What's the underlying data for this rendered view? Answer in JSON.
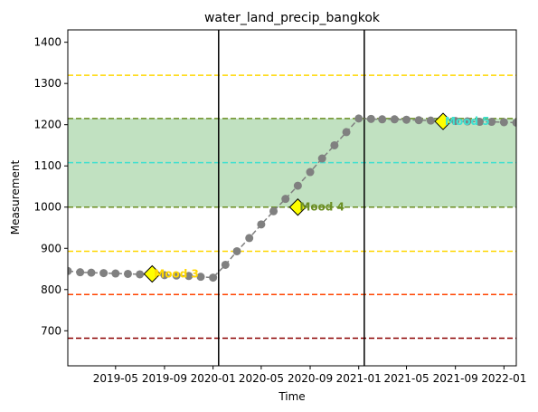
{
  "chart_data": {
    "type": "line",
    "title": "water_land_precip_bangkok",
    "xlabel": "Time",
    "ylabel": "Measurement",
    "xlim": [
      "2019-01-01",
      "2022-02-01"
    ],
    "ylim": [
      615,
      1430
    ],
    "x_ticks": [
      "2019-05",
      "2019-09",
      "2020-01",
      "2020-05",
      "2020-09",
      "2021-01",
      "2021-05",
      "2021-09",
      "2022-01"
    ],
    "y_ticks": [
      700,
      800,
      900,
      1000,
      1100,
      1200,
      1300,
      1400
    ],
    "grid": false,
    "series": [
      {
        "color": "#808080",
        "x": [
          "2019-01-01",
          "2019-02-01",
          "2019-03-01",
          "2019-04-01",
          "2019-05-01",
          "2019-06-01",
          "2019-07-01",
          "2019-08-01",
          "2019-09-01",
          "2019-10-01",
          "2019-11-01",
          "2019-12-01",
          "2020-01-01",
          "2020-02-01",
          "2020-03-01",
          "2020-04-01",
          "2020-05-01",
          "2020-06-01",
          "2020-07-01",
          "2020-08-01",
          "2020-09-01",
          "2020-10-01",
          "2020-11-01",
          "2020-12-01",
          "2021-01-01",
          "2021-02-01",
          "2021-03-01",
          "2021-04-01",
          "2021-05-01",
          "2021-06-01",
          "2021-07-01",
          "2021-08-01",
          "2021-09-01",
          "2021-10-01",
          "2021-11-01",
          "2021-12-01",
          "2022-01-01",
          "2022-02-01"
        ],
        "y": [
          845,
          842,
          841,
          840,
          839,
          838,
          837,
          836,
          835,
          834,
          833,
          831,
          829,
          860,
          893,
          925,
          958,
          990,
          1020,
          1052,
          1085,
          1118,
          1150,
          1182,
          1215,
          1214,
          1213,
          1213,
          1212,
          1211,
          1210,
          1209,
          1209,
          1208,
          1207,
          1207,
          1206,
          1205
        ]
      }
    ],
    "hlines": [
      {
        "y": 1320,
        "color": "#FFD700",
        "style": "dashed"
      },
      {
        "y": 1215,
        "color": "#6B8E23",
        "style": "dashed"
      },
      {
        "y": 1108,
        "color": "#40E0D0",
        "style": "dashed"
      },
      {
        "y": 1000,
        "color": "#6B8E23",
        "style": "dashed"
      },
      {
        "y": 893,
        "color": "#FFD700",
        "style": "dashed"
      },
      {
        "y": 788,
        "color": "#FF4500",
        "style": "dashed"
      },
      {
        "y": 682,
        "color": "#8B0000",
        "style": "dashed"
      }
    ],
    "band": {
      "y0": 1000,
      "y1": 1215,
      "color": "#C1E1C1"
    },
    "vlines": [
      {
        "x": "2020-01-15",
        "color": "#000000"
      },
      {
        "x": "2021-01-15",
        "color": "#000000"
      }
    ],
    "annotations": [
      {
        "label": "Mood 3",
        "x": "2019-08-01",
        "y": 838,
        "color": "#FFD700"
      },
      {
        "label": "Mood 4",
        "x": "2020-08-01",
        "y": 1000,
        "color": "#6B8E23"
      },
      {
        "label": "Mood 5",
        "x": "2021-08-01",
        "y": 1208,
        "color": "#40E0D0"
      }
    ],
    "marker_color": "#FFFF00"
  }
}
